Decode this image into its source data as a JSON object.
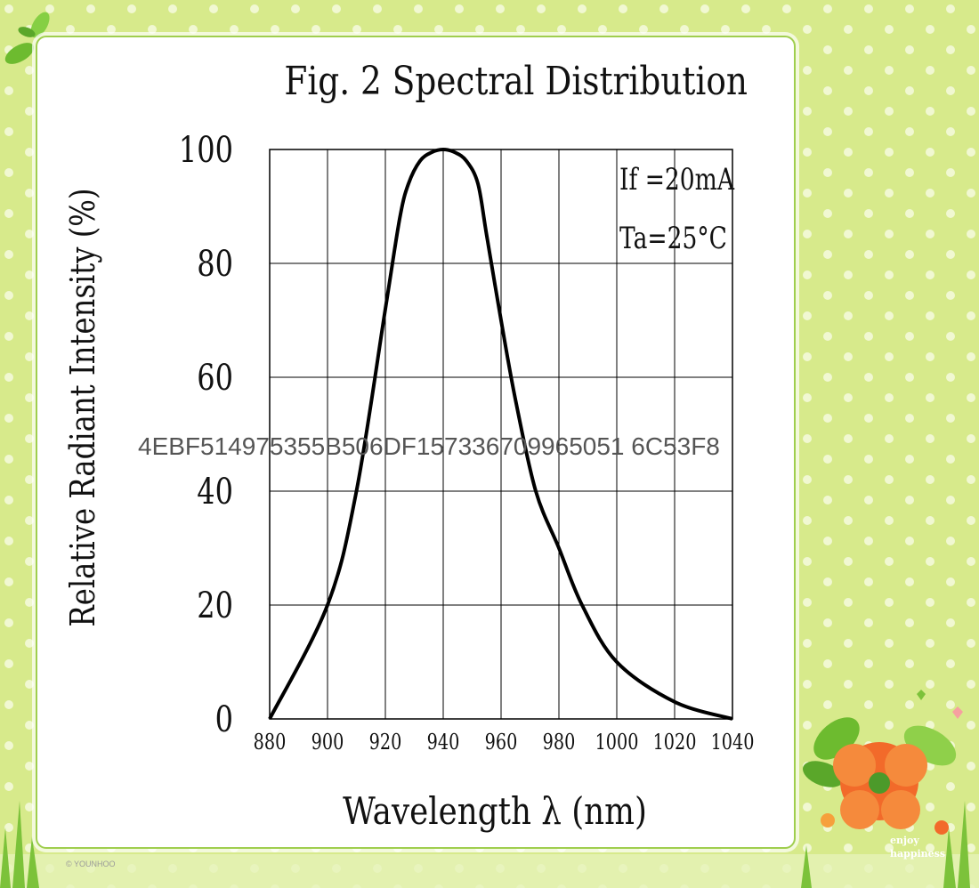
{
  "colors": {
    "background": "#d7ea8b",
    "dots": "#f1f8d2",
    "card_border": "#9fce4e",
    "curve": "#000000",
    "grid": "#000000",
    "flower_orange": "#f26a2a",
    "leaf_green": "#6dbb2f"
  },
  "overlay_code": "4EBF514975355B506DF157336709965051 6C53F8",
  "decor": {
    "enjoy": "enjoy",
    "happiness": "happiness",
    "credit": "© YOUNHOO"
  },
  "chart_data": {
    "type": "line",
    "title": "Fig. 2 Spectral Distribution",
    "xlabel": "Wavelength λ (nm)",
    "ylabel": "Relative Radiant Intensity (%)",
    "xlim": [
      880,
      1040
    ],
    "ylim": [
      0,
      100
    ],
    "x_ticks": [
      880,
      900,
      920,
      940,
      960,
      980,
      1000,
      1020,
      1040
    ],
    "y_ticks": [
      0,
      20,
      40,
      60,
      80,
      100
    ],
    "grid": true,
    "annotations": [
      "If =20mA",
      "Ta=25°C"
    ],
    "series": [
      {
        "x": [
          880,
          900,
          910,
          920,
          925,
          928,
          932,
          936,
          940,
          944,
          948,
          952,
          955,
          960,
          965,
          972,
          980,
          988,
          1000,
          1020,
          1040
        ],
        "y": [
          0,
          20,
          40,
          72,
          88,
          94,
          98,
          99.5,
          100,
          99.5,
          98,
          94,
          85,
          70,
          56,
          40,
          30,
          20,
          10,
          3,
          0
        ]
      }
    ]
  }
}
